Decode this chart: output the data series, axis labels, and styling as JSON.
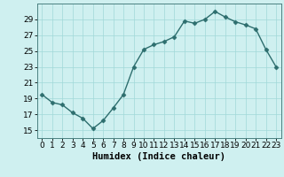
{
  "x": [
    0,
    1,
    2,
    3,
    4,
    5,
    6,
    7,
    8,
    9,
    10,
    11,
    12,
    13,
    14,
    15,
    16,
    17,
    18,
    19,
    20,
    21,
    22,
    23
  ],
  "y": [
    19.5,
    18.5,
    18.2,
    17.2,
    16.5,
    15.2,
    16.2,
    17.8,
    19.5,
    23.0,
    25.2,
    25.8,
    26.2,
    26.8,
    28.8,
    28.5,
    29.0,
    30.0,
    29.3,
    28.7,
    28.3,
    27.8,
    25.2,
    23.0
  ],
  "line_color": "#2d6e6e",
  "marker": "D",
  "marker_size": 2.5,
  "bg_color": "#cff0f0",
  "grid_color": "#a0d8d8",
  "xlabel": "Humidex (Indice chaleur)",
  "xlim": [
    -0.5,
    23.5
  ],
  "ylim": [
    14.0,
    31.0
  ],
  "yticks": [
    15,
    17,
    19,
    21,
    23,
    25,
    27,
    29
  ],
  "xticks": [
    0,
    1,
    2,
    3,
    4,
    5,
    6,
    7,
    8,
    9,
    10,
    11,
    12,
    13,
    14,
    15,
    16,
    17,
    18,
    19,
    20,
    21,
    22,
    23
  ],
  "xlabel_fontsize": 7.5,
  "tick_fontsize": 6.5,
  "line_width": 1.0
}
